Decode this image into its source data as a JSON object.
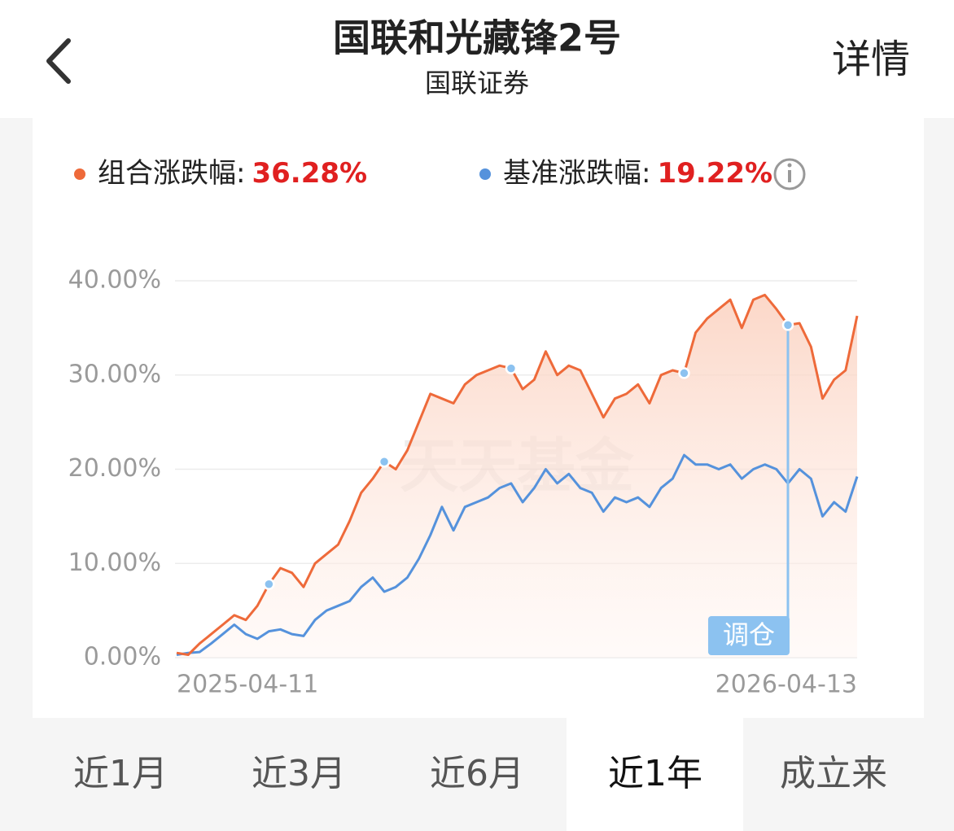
{
  "header": {
    "title": "国联和光藏锋2号",
    "subtitle": "国联证券",
    "action": "详情"
  },
  "chart_data": {
    "type": "line",
    "watermark": "天天基金",
    "categories": [
      "2025-04-11",
      null,
      null,
      null,
      null,
      null,
      null,
      null,
      null,
      null,
      null,
      null,
      null,
      null,
      null,
      null,
      null,
      null,
      null,
      null,
      null,
      null,
      null,
      null,
      null,
      null,
      null,
      null,
      null,
      null,
      null,
      null,
      null,
      null,
      null,
      null,
      null,
      null,
      null,
      null,
      null,
      null,
      null,
      null,
      null,
      null,
      null,
      null,
      null,
      null,
      null,
      null,
      null,
      null,
      null,
      null,
      null,
      null,
      null,
      "2026-04-13"
    ],
    "series": [
      {
        "name": "组合涨跌幅:",
        "color": "#ee6a3a",
        "change": {
          "value": 36.28,
          "label": "36.28%"
        },
        "values": [
          0.5,
          0.3,
          1.5,
          2.5,
          3.5,
          4.5,
          4.0,
          5.5,
          7.8,
          9.5,
          9.0,
          7.5,
          10.0,
          11.0,
          12.0,
          14.5,
          17.5,
          19.0,
          20.8,
          20.0,
          22.0,
          25.0,
          28.0,
          27.5,
          27.0,
          29.0,
          30.0,
          30.5,
          31.0,
          30.7,
          28.5,
          29.5,
          32.5,
          30.0,
          31.0,
          30.5,
          28.0,
          25.5,
          27.5,
          28.0,
          29.0,
          27.0,
          30.0,
          30.5,
          30.2,
          34.5,
          36.0,
          37.0,
          38.0,
          35.0,
          38.0,
          38.5,
          37.0,
          35.3,
          35.5,
          33.0,
          27.5,
          29.5,
          30.5,
          36.28
        ]
      },
      {
        "name": "基准涨跌幅:",
        "color": "#5592dc",
        "change": {
          "value": 19.22,
          "label": "19.22%"
        },
        "values": [
          0.3,
          0.5,
          0.6,
          1.5,
          2.5,
          3.5,
          2.5,
          2.0,
          2.8,
          3.0,
          2.5,
          2.3,
          4.0,
          5.0,
          5.5,
          6.0,
          7.5,
          8.5,
          7.0,
          7.5,
          8.5,
          10.5,
          13.0,
          16.0,
          13.5,
          16.0,
          16.5,
          17.0,
          18.0,
          18.5,
          16.5,
          18.0,
          20.0,
          18.5,
          19.5,
          18.0,
          17.5,
          15.5,
          17.0,
          16.5,
          17.0,
          16.0,
          18.0,
          19.0,
          21.5,
          20.5,
          20.5,
          20.0,
          20.5,
          19.0,
          20.0,
          20.5,
          20.0,
          18.5,
          20.0,
          19.0,
          15.0,
          16.5,
          15.5,
          19.22
        ]
      }
    ],
    "ylim": [
      0,
      40
    ],
    "yticks": [
      {
        "value": 0,
        "label": "0.00%"
      },
      {
        "value": 10,
        "label": "10.00%"
      },
      {
        "value": 20,
        "label": "20.00%"
      },
      {
        "value": 30,
        "label": "30.00%"
      },
      {
        "value": 40,
        "label": "40.00%"
      }
    ],
    "grid": true,
    "rebalance": {
      "label": "调仓",
      "points": [
        8,
        18,
        29,
        44,
        53
      ],
      "highlight": 53
    }
  },
  "tabs": {
    "items": [
      "近1月",
      "近3月",
      "近6月",
      "近1年",
      "成立来"
    ],
    "selected": 3
  }
}
